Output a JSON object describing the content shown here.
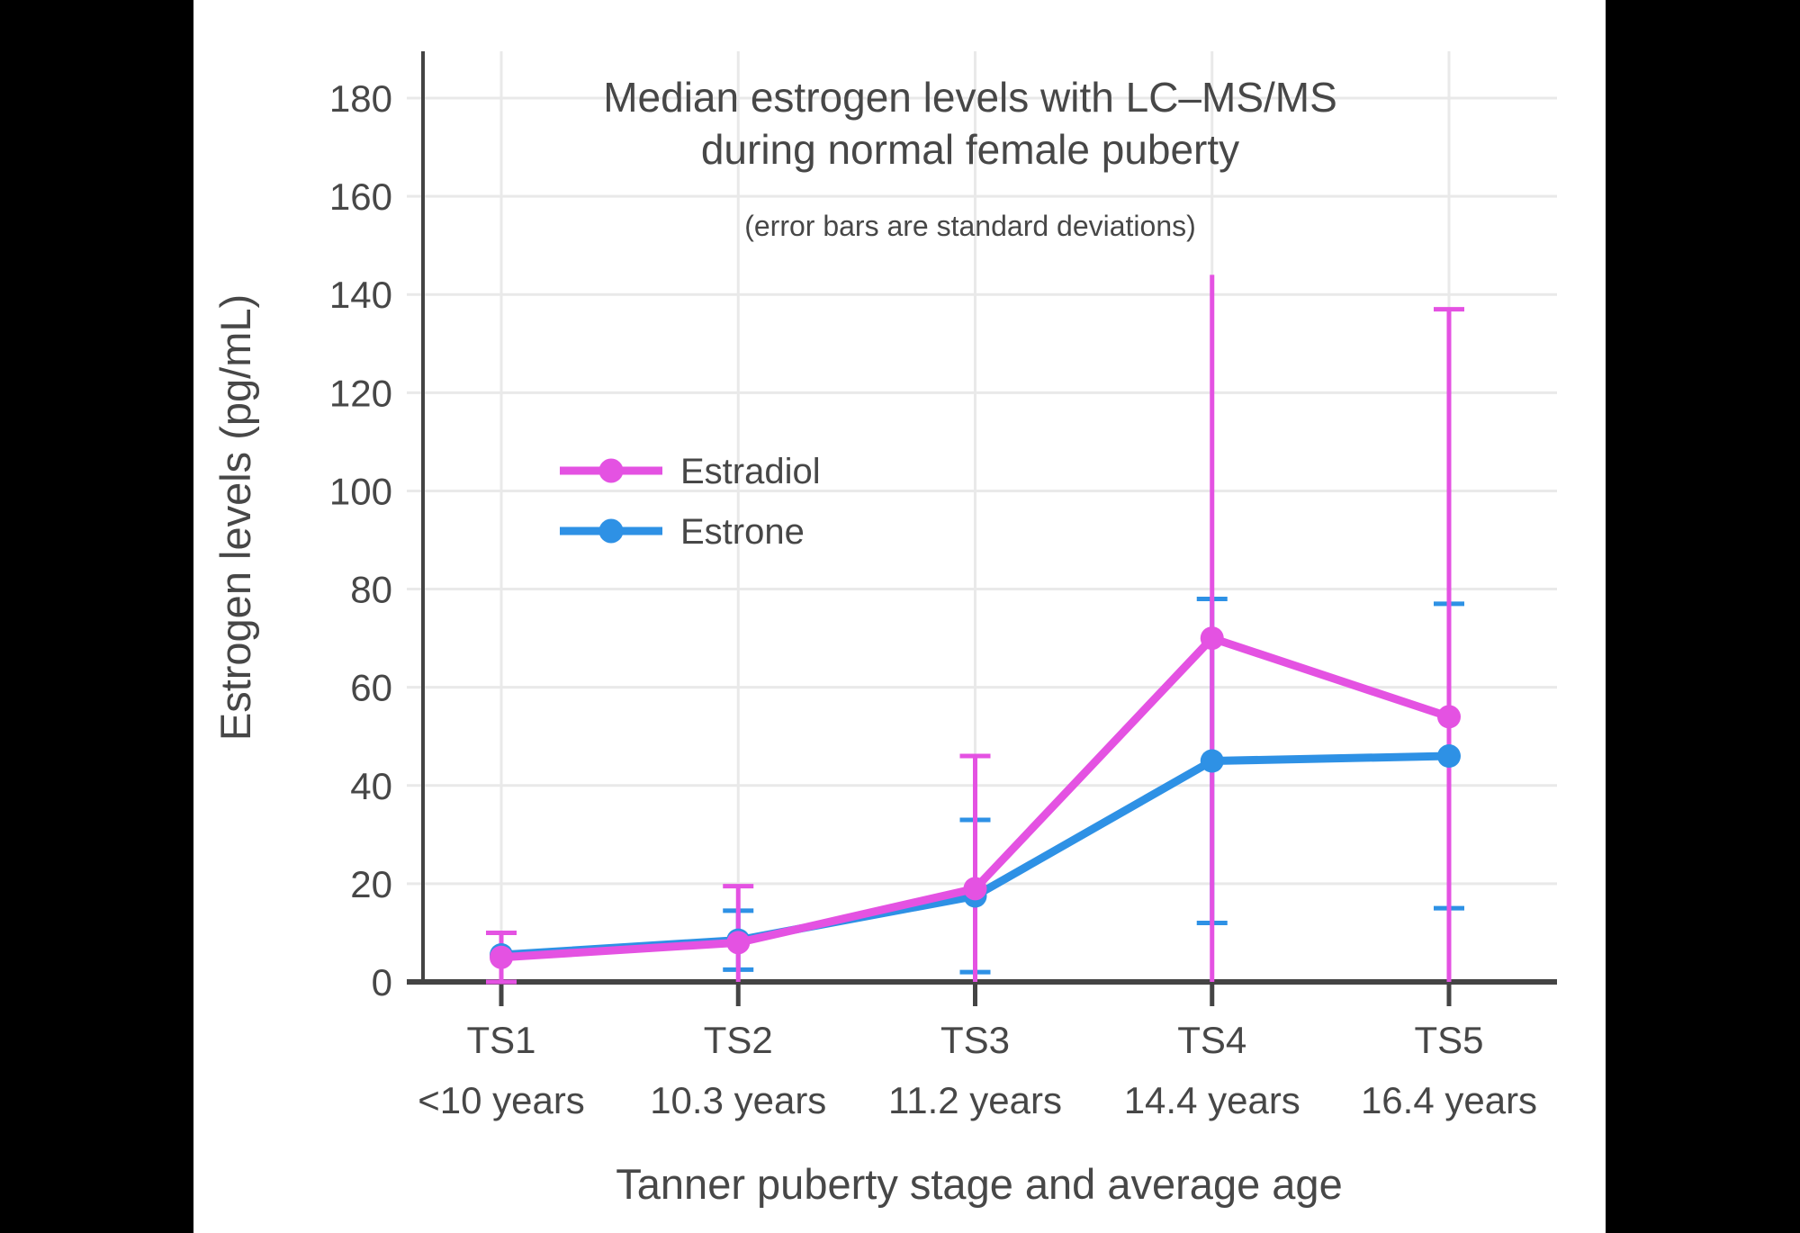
{
  "window": {
    "letterbox_color": "#000000",
    "panel_color": "#ffffff"
  },
  "chart_data": {
    "type": "line",
    "title_line1": "Median estrogen levels with LC–MS/MS",
    "title_line2": "during normal female puberty",
    "subtitle": "(error bars are standard deviations)",
    "xlabel": "Tanner puberty stage and average age",
    "ylabel": "Estrogen levels (pg/mL)",
    "categories": [
      {
        "stage": "TS1",
        "age": "<10 years"
      },
      {
        "stage": "TS2",
        "age": "10.3 years"
      },
      {
        "stage": "TS3",
        "age": "11.2 years"
      },
      {
        "stage": "TS4",
        "age": "14.4 years"
      },
      {
        "stage": "TS5",
        "age": "16.4 years"
      }
    ],
    "y_ticks": [
      0,
      20,
      40,
      60,
      80,
      100,
      120,
      140,
      160,
      180
    ],
    "ylim": [
      0,
      189
    ],
    "grid": true,
    "legend_position": "inside-upper-left",
    "series": [
      {
        "name": "Estradiol",
        "color": "#E452E2",
        "values": [
          5,
          8,
          19,
          70,
          54
        ],
        "sd": [
          5,
          11.5,
          27,
          74,
          83
        ],
        "top_cap_visible": [
          true,
          true,
          true,
          false,
          true
        ]
      },
      {
        "name": "Estrone",
        "color": "#2E91E5",
        "values": [
          5.5,
          8.5,
          17.5,
          45,
          46
        ],
        "sd": [
          null,
          6,
          15.5,
          33,
          31
        ],
        "top_cap_visible": [
          true,
          true,
          true,
          true,
          true
        ]
      }
    ],
    "error_bar_note": "error bars clipped at 0; bottom caps hidden when median − SD < 0",
    "colors": {
      "grid": "#E9E9E9",
      "axis": "#444444",
      "text": "#474747"
    }
  }
}
